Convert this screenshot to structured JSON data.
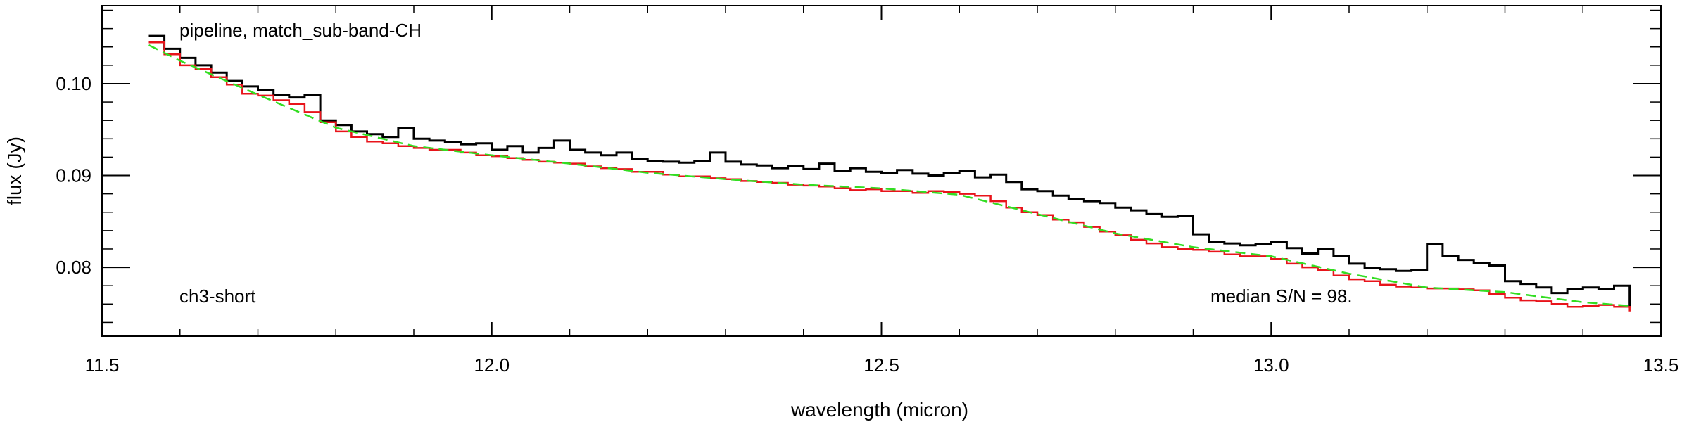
{
  "chart_data": {
    "type": "line",
    "title": "",
    "xlabel": "wavelength (micron)",
    "ylabel": "flux (Jy)",
    "xlim": [
      11.5,
      13.5
    ],
    "ylim": [
      0.0725,
      0.1085
    ],
    "x_ticks": [
      11.5,
      12.0,
      12.5,
      13.0,
      13.5
    ],
    "x_tick_labels": [
      "11.5",
      "12.0",
      "12.5",
      "13.0",
      "13.5"
    ],
    "y_ticks": [
      0.08,
      0.09,
      0.1
    ],
    "y_tick_labels": [
      "0.08",
      "0.09",
      "0.10"
    ],
    "grid": false,
    "legend": "none",
    "annotations": {
      "top_left": "pipeline, match_sub-band-CH",
      "bottom_left": "ch3-short",
      "bottom_right": "median S/N = 98."
    },
    "series": [
      {
        "style": "black step",
        "color": "#000000",
        "x": [
          11.56,
          11.58,
          11.6,
          11.62,
          11.64,
          11.66,
          11.68,
          11.7,
          11.72,
          11.74,
          11.76,
          11.78,
          11.8,
          11.82,
          11.84,
          11.86,
          11.88,
          11.9,
          11.92,
          11.94,
          11.96,
          11.98,
          12.0,
          12.02,
          12.04,
          12.06,
          12.08,
          12.1,
          12.12,
          12.14,
          12.16,
          12.18,
          12.2,
          12.22,
          12.24,
          12.26,
          12.28,
          12.3,
          12.32,
          12.34,
          12.36,
          12.38,
          12.4,
          12.42,
          12.44,
          12.46,
          12.48,
          12.5,
          12.52,
          12.54,
          12.56,
          12.58,
          12.6,
          12.62,
          12.64,
          12.66,
          12.68,
          12.7,
          12.72,
          12.74,
          12.76,
          12.78,
          12.8,
          12.82,
          12.84,
          12.86,
          12.88,
          12.9,
          12.92,
          12.94,
          12.96,
          12.98,
          13.0,
          13.02,
          13.04,
          13.06,
          13.08,
          13.1,
          13.12,
          13.14,
          13.16,
          13.18,
          13.2,
          13.22,
          13.24,
          13.26,
          13.28,
          13.3,
          13.32,
          13.34,
          13.36,
          13.38,
          13.4,
          13.42,
          13.44,
          13.46
        ],
        "y": [
          0.1052,
          0.1038,
          0.1028,
          0.102,
          0.1012,
          0.1003,
          0.0997,
          0.0993,
          0.0988,
          0.0985,
          0.0988,
          0.096,
          0.0955,
          0.0948,
          0.0945,
          0.0942,
          0.0952,
          0.094,
          0.0938,
          0.0936,
          0.0934,
          0.0935,
          0.0928,
          0.0932,
          0.0925,
          0.093,
          0.0938,
          0.0928,
          0.0925,
          0.0922,
          0.0925,
          0.0918,
          0.0916,
          0.0915,
          0.0914,
          0.0916,
          0.0925,
          0.0915,
          0.0912,
          0.0911,
          0.0908,
          0.091,
          0.0907,
          0.0913,
          0.0905,
          0.0908,
          0.0904,
          0.0903,
          0.0906,
          0.0902,
          0.09,
          0.0903,
          0.0905,
          0.0898,
          0.0901,
          0.0893,
          0.0885,
          0.0883,
          0.0878,
          0.0874,
          0.0872,
          0.087,
          0.0865,
          0.0862,
          0.0858,
          0.0855,
          0.0856,
          0.0836,
          0.0828,
          0.0826,
          0.0824,
          0.0825,
          0.0828,
          0.0821,
          0.0815,
          0.082,
          0.0812,
          0.0804,
          0.0799,
          0.0798,
          0.0796,
          0.0797,
          0.0825,
          0.0812,
          0.0808,
          0.0805,
          0.0802,
          0.0785,
          0.0782,
          0.0778,
          0.0772,
          0.0776,
          0.0778,
          0.0776,
          0.078,
          0.0756
        ]
      },
      {
        "style": "red continuum",
        "color": "#e8141b",
        "x": [
          11.56,
          11.58,
          11.6,
          11.62,
          11.64,
          11.66,
          11.68,
          11.7,
          11.72,
          11.74,
          11.76,
          11.78,
          11.8,
          11.82,
          11.84,
          11.86,
          11.88,
          11.9,
          11.92,
          11.94,
          11.96,
          11.98,
          12.0,
          12.02,
          12.04,
          12.06,
          12.08,
          12.1,
          12.12,
          12.14,
          12.16,
          12.18,
          12.2,
          12.22,
          12.24,
          12.26,
          12.28,
          12.3,
          12.32,
          12.34,
          12.36,
          12.38,
          12.4,
          12.42,
          12.44,
          12.46,
          12.48,
          12.5,
          12.52,
          12.54,
          12.56,
          12.58,
          12.6,
          12.62,
          12.64,
          12.66,
          12.68,
          12.7,
          12.72,
          12.74,
          12.76,
          12.78,
          12.8,
          12.82,
          12.84,
          12.86,
          12.88,
          12.9,
          12.92,
          12.94,
          12.96,
          12.98,
          13.0,
          13.02,
          13.04,
          13.06,
          13.08,
          13.1,
          13.12,
          13.14,
          13.16,
          13.18,
          13.2,
          13.22,
          13.24,
          13.26,
          13.28,
          13.3,
          13.32,
          13.34,
          13.36,
          13.38,
          13.4,
          13.42,
          13.44,
          13.46
        ],
        "y": [
          0.1045,
          0.1032,
          0.102,
          0.1016,
          0.1007,
          0.0999,
          0.0989,
          0.0987,
          0.0982,
          0.0978,
          0.0969,
          0.0958,
          0.0948,
          0.0942,
          0.0937,
          0.0935,
          0.0932,
          0.093,
          0.0928,
          0.0928,
          0.0925,
          0.0922,
          0.0921,
          0.0919,
          0.0917,
          0.0915,
          0.0914,
          0.0913,
          0.091,
          0.0908,
          0.0907,
          0.0904,
          0.0904,
          0.0901,
          0.0899,
          0.0899,
          0.0897,
          0.0896,
          0.0894,
          0.0893,
          0.0892,
          0.089,
          0.0889,
          0.0888,
          0.0886,
          0.0884,
          0.0885,
          0.0883,
          0.0883,
          0.0881,
          0.0883,
          0.0882,
          0.088,
          0.0878,
          0.0872,
          0.0865,
          0.086,
          0.0857,
          0.0852,
          0.0849,
          0.0844,
          0.0839,
          0.0835,
          0.083,
          0.0826,
          0.0822,
          0.082,
          0.0819,
          0.0817,
          0.0814,
          0.0812,
          0.0812,
          0.0809,
          0.0804,
          0.08,
          0.0797,
          0.0791,
          0.0787,
          0.0785,
          0.0781,
          0.0779,
          0.0778,
          0.0777,
          0.0777,
          0.0776,
          0.0775,
          0.0771,
          0.0767,
          0.0764,
          0.0763,
          0.076,
          0.0757,
          0.0758,
          0.0759,
          0.0757,
          0.0752
        ]
      },
      {
        "style": "green dashed fit",
        "color": "#33dd22",
        "dashed": true,
        "x": [
          11.56,
          11.6,
          11.7,
          11.8,
          11.9,
          12.0,
          12.1,
          12.2,
          12.3,
          12.4,
          12.5,
          12.6,
          12.7,
          12.8,
          12.9,
          13.0,
          13.1,
          13.2,
          13.3,
          13.4,
          13.46
        ],
        "y": [
          0.1042,
          0.1025,
          0.0988,
          0.0952,
          0.0932,
          0.0922,
          0.0913,
          0.0903,
          0.0896,
          0.089,
          0.0886,
          0.0879,
          0.0858,
          0.0837,
          0.0822,
          0.0812,
          0.0793,
          0.0778,
          0.0773,
          0.0762,
          0.0758
        ]
      }
    ]
  }
}
